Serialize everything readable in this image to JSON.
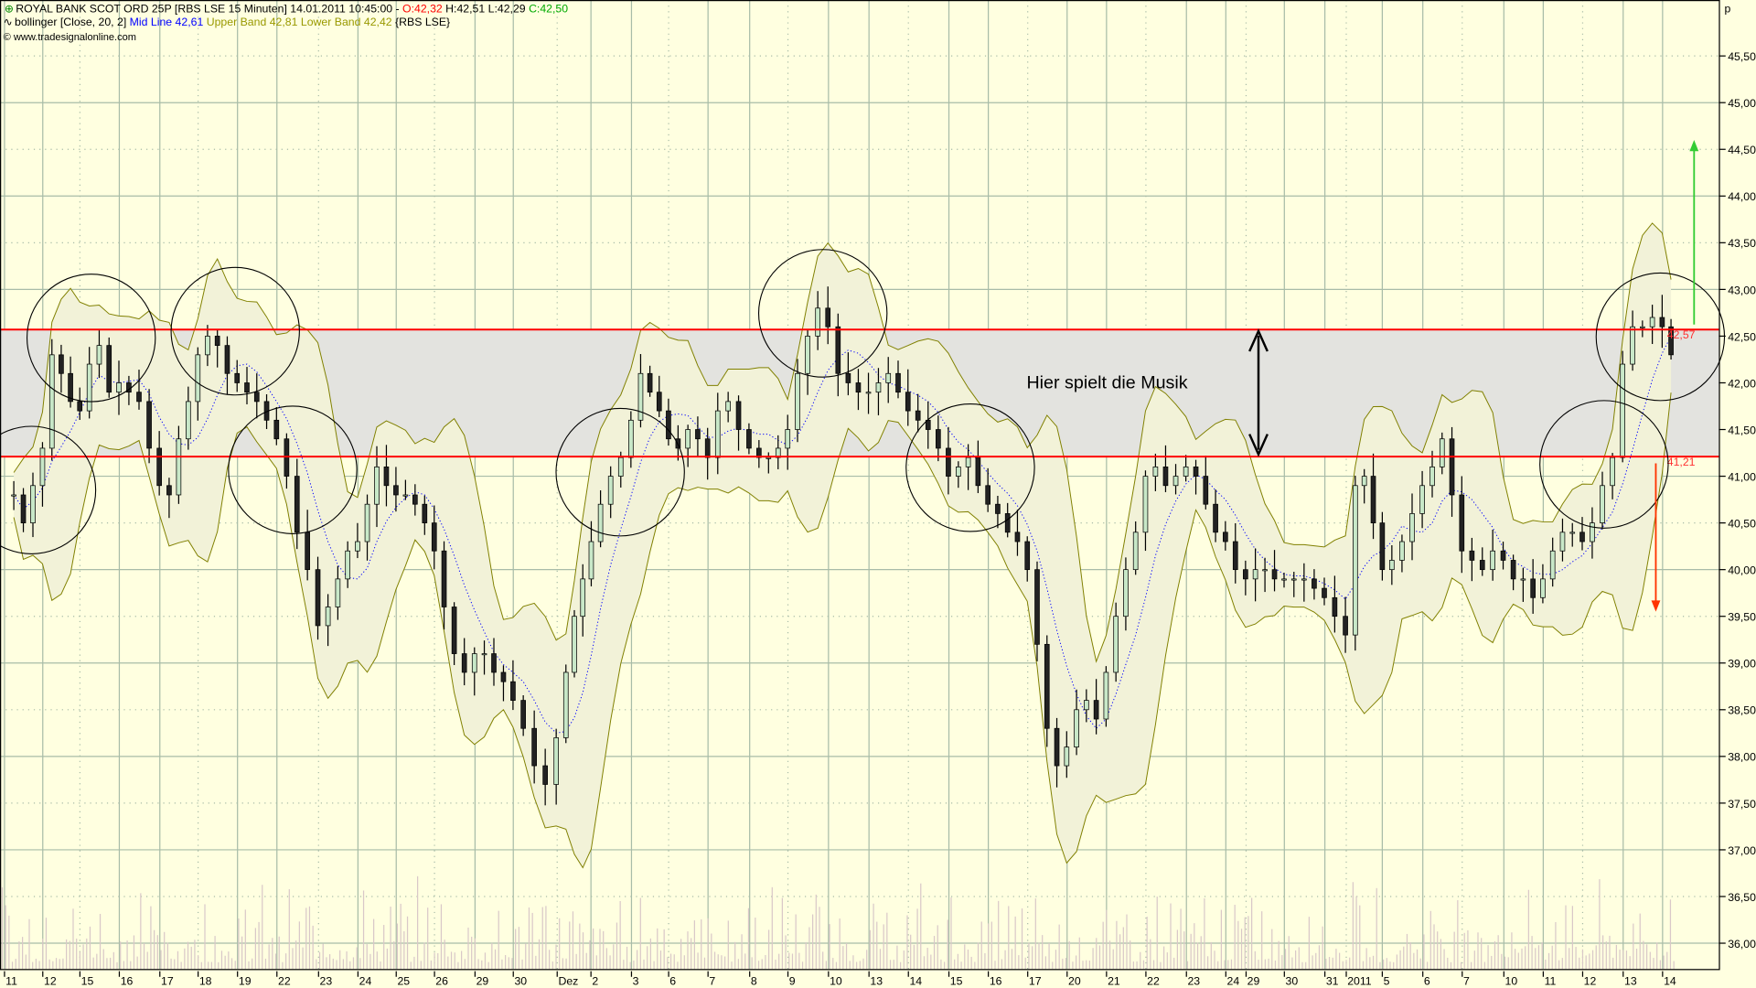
{
  "header": {
    "symbol_line": "ROYAL BANK SCOT ORD 25P [RBS LSE  15 Minuten] 14.01.2011 10:45:00 - ",
    "open": "O:42,32",
    "high": "H:42,51",
    "low": "L:42,29",
    "close": "C:42,50",
    "indicator_name": "bollinger [Close, 20, 2]",
    "mid_line": "Mid Line 42,61",
    "upper_band": "Upper Band 42,81",
    "lower_band": "Lower Band 42,42",
    "indicator_source": "{RBS LSE}",
    "copyright": "© www.tradesignalonline.com"
  },
  "colors": {
    "background": "#ffffe0",
    "zone": "#e3e3df",
    "support_resistance": "#ff0000",
    "band": "#808000",
    "mid_line": "#0000ff",
    "up_arrow": "#33cc33",
    "down_arrow": "#ff3300",
    "open_text": "#ff0000",
    "close_text": "#00aa00"
  },
  "chart_data": {
    "type": "candlestick",
    "title": "ROYAL BANK SCOT ORD 25P [RBS LSE  15 Minuten]",
    "y_unit": "p",
    "ylim": [
      35.8,
      46.1
    ],
    "y_ticks": [
      "36,00",
      "36,50",
      "37,00",
      "37,50",
      "38,00",
      "38,50",
      "39,00",
      "39,50",
      "40,00",
      "40,50",
      "41,00",
      "41,50",
      "42,00",
      "42,50",
      "43,00",
      "43,50",
      "44,00",
      "44,50",
      "45,00",
      "45,50"
    ],
    "y_tick_values": [
      36,
      36.5,
      37,
      37.5,
      38,
      38.5,
      39,
      39.5,
      40,
      40.5,
      41,
      41.5,
      42,
      42.5,
      43,
      43.5,
      44,
      44.5,
      45,
      45.5
    ],
    "x_tick_labels": [
      "11",
      "12",
      "15",
      "16",
      "17",
      "18",
      "19",
      "22",
      "23",
      "24",
      "25",
      "26",
      "29",
      "30",
      "Dez",
      "2",
      "3",
      "6",
      "7",
      "8",
      "9",
      "10",
      "13",
      "14",
      "15",
      "16",
      "17",
      "20",
      "21",
      "22",
      "23",
      "24",
      "29",
      "30",
      "31",
      "2011",
      "5",
      "6",
      "7",
      "10",
      "11",
      "12",
      "13",
      "14"
    ],
    "grid": true,
    "days": [
      {
        "date": "2010-11-11",
        "closes": [
          40.8,
          40.5,
          40.9,
          41.3
        ]
      },
      {
        "date": "2010-11-12",
        "closes": [
          42.3,
          42.1,
          41.8,
          41.7
        ]
      },
      {
        "date": "2010-11-15",
        "closes": [
          42.2,
          42.4,
          41.9,
          42.0
        ]
      },
      {
        "date": "2010-11-16",
        "closes": [
          41.9,
          41.8,
          41.3,
          40.9
        ]
      },
      {
        "date": "2010-11-17",
        "closes": [
          40.8,
          41.4,
          41.8,
          42.3
        ]
      },
      {
        "date": "2010-11-18",
        "closes": [
          42.5,
          42.4,
          42.1,
          42.0
        ]
      },
      {
        "date": "2010-11-19",
        "closes": [
          41.9,
          41.8,
          41.6,
          41.4
        ]
      },
      {
        "date": "2010-11-22",
        "closes": [
          41.0,
          40.4,
          40.0,
          39.4
        ]
      },
      {
        "date": "2010-11-23",
        "closes": [
          39.6,
          39.9,
          40.2,
          40.3
        ]
      },
      {
        "date": "2010-11-24",
        "closes": [
          40.7,
          41.1,
          40.9,
          40.8
        ]
      },
      {
        "date": "2010-11-25",
        "closes": [
          40.8,
          40.7,
          40.5,
          40.2
        ]
      },
      {
        "date": "2010-11-26",
        "closes": [
          39.6,
          39.1,
          38.9,
          39.1
        ]
      },
      {
        "date": "2010-11-29",
        "closes": [
          39.1,
          38.9,
          38.8,
          38.6
        ]
      },
      {
        "date": "2010-11-30",
        "closes": [
          38.3,
          37.9,
          37.7,
          38.2
        ]
      },
      {
        "date": "2010-12-01",
        "closes": [
          38.9,
          39.5,
          39.9,
          40.3
        ]
      },
      {
        "date": "2010-12-02",
        "closes": [
          40.7,
          41.0,
          41.2,
          41.6
        ]
      },
      {
        "date": "2010-12-03",
        "closes": [
          42.1,
          41.9,
          41.7,
          41.4
        ]
      },
      {
        "date": "2010-12-06",
        "closes": [
          41.3,
          41.5,
          41.4,
          41.2
        ]
      },
      {
        "date": "2010-12-07",
        "closes": [
          41.7,
          41.8,
          41.5,
          41.3
        ]
      },
      {
        "date": "2010-12-08",
        "closes": [
          41.2,
          41.2,
          41.3,
          41.5
        ]
      },
      {
        "date": "2010-12-09",
        "closes": [
          42.1,
          42.5,
          42.8,
          42.6
        ]
      },
      {
        "date": "2010-12-10",
        "closes": [
          42.1,
          42.0,
          41.9,
          41.9
        ]
      },
      {
        "date": "2010-12-13",
        "closes": [
          42.0,
          42.1,
          41.9,
          41.7
        ]
      },
      {
        "date": "2010-12-14",
        "closes": [
          41.6,
          41.5,
          41.3,
          41.0
        ]
      },
      {
        "date": "2010-12-15",
        "closes": [
          41.1,
          41.2,
          40.9,
          40.7
        ]
      },
      {
        "date": "2010-12-16",
        "closes": [
          40.6,
          40.4,
          40.3,
          40.0
        ]
      },
      {
        "date": "2010-12-17",
        "closes": [
          39.2,
          38.3,
          37.9,
          38.1
        ]
      },
      {
        "date": "2010-12-20",
        "closes": [
          38.5,
          38.6,
          38.4,
          38.9
        ]
      },
      {
        "date": "2010-12-21",
        "closes": [
          39.5,
          40.0,
          40.4,
          41.0
        ]
      },
      {
        "date": "2010-12-22",
        "closes": [
          41.1,
          40.9,
          41.0,
          41.1
        ]
      },
      {
        "date": "2010-12-23",
        "closes": [
          41.0,
          40.7,
          40.4,
          40.3
        ]
      },
      {
        "date": "2010-12-24",
        "closes": [
          40.0,
          39.9
        ]
      },
      {
        "date": "2010-12-29",
        "closes": [
          40.0,
          40.0,
          39.9,
          39.9
        ]
      },
      {
        "date": "2010-12-30",
        "closes": [
          39.9,
          39.9,
          39.8,
          39.7
        ]
      },
      {
        "date": "2010-12-31",
        "closes": [
          39.5,
          39.3
        ]
      },
      {
        "date": "2011-01-04",
        "closes": [
          40.9,
          41.0,
          40.5,
          40.0
        ]
      },
      {
        "date": "2011-01-05",
        "closes": [
          40.1,
          40.3,
          40.6,
          40.9
        ]
      },
      {
        "date": "2011-01-06",
        "closes": [
          41.1,
          41.4,
          40.8,
          40.2
        ]
      },
      {
        "date": "2011-01-07",
        "closes": [
          40.1,
          40.0,
          40.2,
          40.1
        ]
      },
      {
        "date": "2011-01-10",
        "closes": [
          39.9,
          39.9,
          39.7,
          39.9
        ]
      },
      {
        "date": "2011-01-11",
        "closes": [
          40.2,
          40.4,
          40.4,
          40.3
        ]
      },
      {
        "date": "2011-01-12",
        "closes": [
          40.5,
          40.9,
          41.2,
          42.2
        ]
      },
      {
        "date": "2011-01-13",
        "closes": [
          42.6,
          42.6,
          42.7,
          42.6
        ]
      },
      {
        "date": "2011-01-14",
        "closes": [
          42.3
        ]
      }
    ],
    "zone": {
      "upper": 42.57,
      "lower": 41.21,
      "upper_label": "42,57",
      "lower_label": "41,21"
    },
    "annotation_text": "Hier spielt die Musik",
    "up_target": 44.6,
    "down_target": 39.55
  }
}
